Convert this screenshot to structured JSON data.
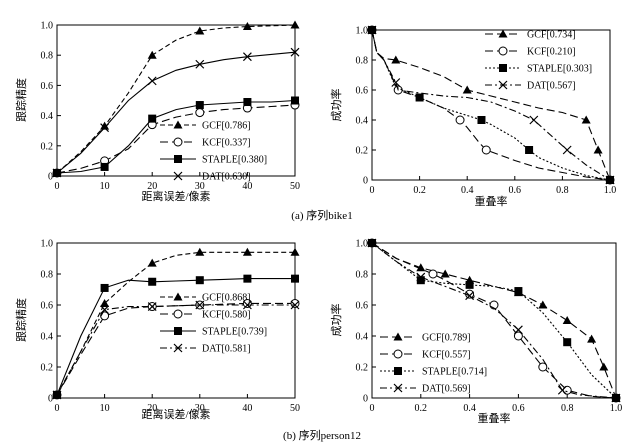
{
  "colors": {
    "ink": "#000000",
    "paper": "#ffffff"
  },
  "captions": {
    "top": "(a) 序列bike1",
    "bottom": "(b) 序列person12"
  },
  "chart_data": [
    {
      "type": "line",
      "id": "bike1-precision",
      "xlabel": "距离误差/像素",
      "ylabel": "跟踪精度",
      "xlim": [
        0,
        50
      ],
      "ylim": [
        0,
        1.0
      ],
      "xticks": [
        0,
        10,
        20,
        30,
        40,
        50
      ],
      "yticks": [
        0,
        0.2,
        0.4,
        0.6,
        0.8,
        1.0
      ],
      "legend": "bottom-right",
      "series": [
        {
          "name": "GCF[0.786]",
          "style": "dashed",
          "marker": "triangle",
          "x": [
            0,
            5,
            10,
            15,
            20,
            25,
            30,
            35,
            40,
            45,
            50
          ],
          "y": [
            0.02,
            0.16,
            0.33,
            0.55,
            0.8,
            0.9,
            0.96,
            0.98,
            0.99,
            0.995,
            1.0
          ]
        },
        {
          "name": "KCF[0.337]",
          "style": "longdash",
          "marker": "circle",
          "x": [
            0,
            5,
            10,
            15,
            20,
            25,
            30,
            35,
            40,
            45,
            50
          ],
          "y": [
            0.02,
            0.05,
            0.1,
            0.18,
            0.34,
            0.39,
            0.42,
            0.44,
            0.45,
            0.46,
            0.47
          ]
        },
        {
          "name": "STAPLE[0.380]",
          "style": "solid",
          "marker": "square",
          "x": [
            0,
            5,
            10,
            15,
            20,
            25,
            30,
            35,
            40,
            45,
            50
          ],
          "y": [
            0.02,
            0.03,
            0.06,
            0.2,
            0.38,
            0.44,
            0.47,
            0.48,
            0.49,
            0.49,
            0.5
          ]
        },
        {
          "name": "DAT[0.630]",
          "style": "solid",
          "marker": "x",
          "x": [
            0,
            5,
            10,
            15,
            20,
            25,
            30,
            35,
            40,
            45,
            50
          ],
          "y": [
            0.02,
            0.15,
            0.32,
            0.5,
            0.63,
            0.7,
            0.74,
            0.77,
            0.79,
            0.805,
            0.82
          ]
        }
      ]
    },
    {
      "type": "line",
      "id": "bike1-success",
      "xlabel": "重叠率",
      "ylabel": "成功率",
      "xlim": [
        0,
        1.0
      ],
      "ylim": [
        0,
        1.0
      ],
      "xticks": [
        0,
        0.2,
        0.4,
        0.6,
        0.8,
        1.0
      ],
      "yticks": [
        0,
        0.2,
        0.4,
        0.6,
        0.8,
        1.0
      ],
      "legend": "top-right",
      "series": [
        {
          "name": "GCF[0.734]",
          "style": "longdash",
          "marker": "triangle",
          "x": [
            0,
            0.02,
            0.05,
            0.1,
            0.2,
            0.3,
            0.4,
            0.5,
            0.6,
            0.7,
            0.8,
            0.9,
            0.95,
            1.0
          ],
          "y": [
            1.0,
            0.85,
            0.81,
            0.8,
            0.75,
            0.69,
            0.6,
            0.56,
            0.52,
            0.48,
            0.45,
            0.4,
            0.2,
            0.0
          ]
        },
        {
          "name": "KCF[0.210]",
          "style": "longdash",
          "marker": "circle",
          "x": [
            0,
            0.02,
            0.05,
            0.08,
            0.11,
            0.2,
            0.3,
            0.37,
            0.4,
            0.45,
            0.48,
            0.6,
            0.7,
            0.8,
            0.9,
            1.0
          ],
          "y": [
            1.0,
            0.85,
            0.8,
            0.7,
            0.6,
            0.55,
            0.48,
            0.4,
            0.35,
            0.25,
            0.2,
            0.13,
            0.08,
            0.05,
            0.02,
            0.0
          ]
        },
        {
          "name": "STAPLE[0.303]",
          "style": "dotted",
          "marker": "square",
          "x": [
            0,
            0.02,
            0.05,
            0.1,
            0.2,
            0.3,
            0.4,
            0.46,
            0.5,
            0.6,
            0.66,
            0.7,
            0.8,
            0.9,
            1.0
          ],
          "y": [
            1.0,
            0.85,
            0.8,
            0.62,
            0.55,
            0.48,
            0.43,
            0.4,
            0.37,
            0.28,
            0.2,
            0.15,
            0.08,
            0.03,
            0.0
          ]
        },
        {
          "name": "DAT[0.567]",
          "style": "dashdot",
          "marker": "x",
          "x": [
            0,
            0.02,
            0.05,
            0.1,
            0.11,
            0.2,
            0.3,
            0.4,
            0.5,
            0.6,
            0.68,
            0.75,
            0.82,
            0.9,
            1.0
          ],
          "y": [
            1.0,
            0.85,
            0.8,
            0.65,
            0.6,
            0.58,
            0.56,
            0.55,
            0.52,
            0.46,
            0.4,
            0.3,
            0.2,
            0.1,
            0.0
          ]
        }
      ]
    },
    {
      "type": "line",
      "id": "person12-precision",
      "xlabel": "距离误差/像素",
      "ylabel": "跟踪精度",
      "xlim": [
        0,
        50
      ],
      "ylim": [
        0,
        1.0
      ],
      "xticks": [
        0,
        10,
        20,
        30,
        40,
        50
      ],
      "yticks": [
        0,
        0.2,
        0.4,
        0.6,
        0.8,
        1.0
      ],
      "legend": "bottom-right",
      "series": [
        {
          "name": "GCF[0.868]",
          "style": "dashed",
          "marker": "triangle",
          "x": [
            0,
            5,
            10,
            15,
            20,
            25,
            30,
            35,
            40,
            45,
            50
          ],
          "y": [
            0.02,
            0.3,
            0.61,
            0.75,
            0.87,
            0.92,
            0.94,
            0.94,
            0.94,
            0.94,
            0.94
          ]
        },
        {
          "name": "KCF[0.580]",
          "style": "longdash",
          "marker": "circle",
          "x": [
            0,
            5,
            10,
            15,
            20,
            25,
            30,
            35,
            40,
            45,
            50
          ],
          "y": [
            0.02,
            0.28,
            0.53,
            0.58,
            0.59,
            0.595,
            0.6,
            0.605,
            0.61,
            0.61,
            0.61
          ]
        },
        {
          "name": "STAPLE[0.739]",
          "style": "solid",
          "marker": "square",
          "x": [
            0,
            5,
            10,
            15,
            20,
            25,
            30,
            35,
            40,
            45,
            50
          ],
          "y": [
            0.02,
            0.4,
            0.71,
            0.76,
            0.75,
            0.755,
            0.76,
            0.765,
            0.77,
            0.77,
            0.77
          ]
        },
        {
          "name": "DAT[0.581]",
          "style": "dashdot",
          "marker": "x",
          "x": [
            0,
            5,
            10,
            15,
            20,
            25,
            30,
            35,
            40,
            45,
            50
          ],
          "y": [
            0.02,
            0.3,
            0.57,
            0.59,
            0.59,
            0.595,
            0.6,
            0.6,
            0.6,
            0.6,
            0.6
          ]
        }
      ]
    },
    {
      "type": "line",
      "id": "person12-success",
      "xlabel": "重叠率",
      "ylabel": "成功率",
      "xlim": [
        0,
        1.0
      ],
      "ylim": [
        0,
        1.0
      ],
      "xticks": [
        0,
        0.2,
        0.4,
        0.6,
        0.8,
        1.0
      ],
      "yticks": [
        0,
        0.2,
        0.4,
        0.6,
        0.8,
        1.0
      ],
      "legend": "bottom-left",
      "series": [
        {
          "name": "GCF[0.789]",
          "style": "longdash",
          "marker": "triangle",
          "x": [
            0,
            0.1,
            0.2,
            0.3,
            0.4,
            0.5,
            0.6,
            0.7,
            0.8,
            0.9,
            0.95,
            1.0
          ],
          "y": [
            1.0,
            0.9,
            0.84,
            0.8,
            0.76,
            0.72,
            0.68,
            0.6,
            0.5,
            0.38,
            0.2,
            0.0
          ]
        },
        {
          "name": "KCF[0.557]",
          "style": "longdash",
          "marker": "circle",
          "x": [
            0,
            0.1,
            0.25,
            0.3,
            0.4,
            0.5,
            0.6,
            0.7,
            0.8,
            0.9,
            1.0
          ],
          "y": [
            1.0,
            0.9,
            0.8,
            0.76,
            0.67,
            0.6,
            0.4,
            0.2,
            0.05,
            0.01,
            0.0
          ]
        },
        {
          "name": "STAPLE[0.714]",
          "style": "dotted",
          "marker": "square",
          "x": [
            0,
            0.1,
            0.2,
            0.3,
            0.4,
            0.5,
            0.6,
            0.7,
            0.8,
            0.9,
            1.0
          ],
          "y": [
            1.0,
            0.88,
            0.76,
            0.74,
            0.73,
            0.72,
            0.69,
            0.55,
            0.36,
            0.15,
            0.0
          ]
        },
        {
          "name": "DAT[0.569]",
          "style": "dashdot",
          "marker": "x",
          "x": [
            0,
            0.1,
            0.2,
            0.3,
            0.4,
            0.5,
            0.6,
            0.7,
            0.78,
            0.85,
            1.0
          ],
          "y": [
            1.0,
            0.88,
            0.78,
            0.72,
            0.66,
            0.58,
            0.44,
            0.25,
            0.05,
            0.02,
            0.0
          ]
        }
      ]
    }
  ]
}
